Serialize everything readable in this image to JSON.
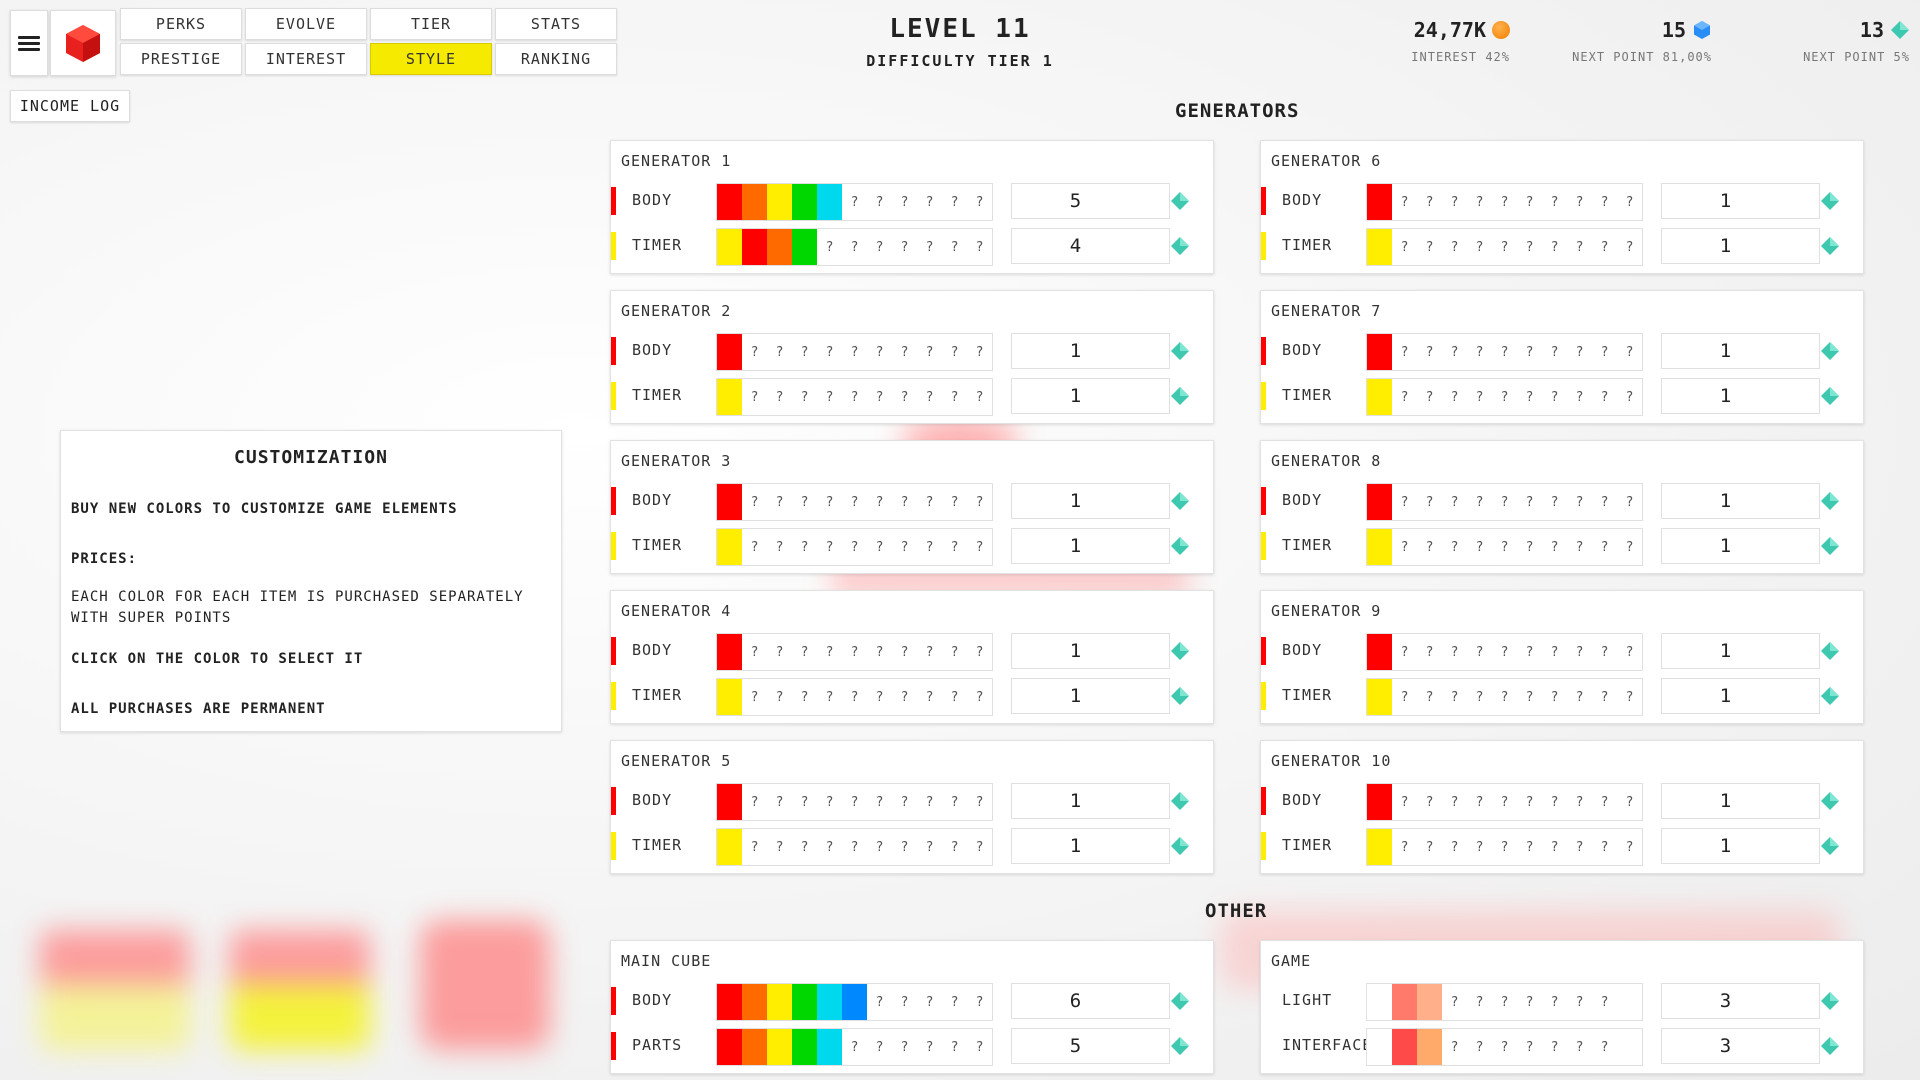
{
  "nav": {
    "menu_icon": "hamburger-menu-icon",
    "logo_icon": "red-cube-icon",
    "buttons": [
      {
        "label": "PERKS",
        "active": false
      },
      {
        "label": "EVOLVE",
        "active": false
      },
      {
        "label": "TIER",
        "active": false
      },
      {
        "label": "STATS",
        "active": false
      },
      {
        "label": "PRESTIGE",
        "active": false
      },
      {
        "label": "INTEREST",
        "active": false
      },
      {
        "label": "STYLE",
        "active": true
      },
      {
        "label": "RANKING",
        "active": false
      }
    ],
    "income_log": "INCOME LOG"
  },
  "header": {
    "level": "LEVEL 11",
    "difficulty": "DIFFICULTY TIER 1",
    "stats": [
      {
        "value": "24,77K",
        "icon": "coin-icon",
        "sub": "INTEREST 42%"
      },
      {
        "value": "15",
        "icon": "blue-gem-icon",
        "sub": "NEXT POINT 81,00%"
      },
      {
        "value": "13",
        "icon": "green-gem-icon",
        "sub": "NEXT POINT 5%"
      }
    ]
  },
  "colors": {
    "accent_yellow": "#f5ea00",
    "red": "#ff0000",
    "orange": "#ff6a00",
    "yellow": "#ffee00",
    "green": "#00d600",
    "cyan": "#00d8ee",
    "blue": "#0088ff",
    "salmon": "#ff7a6a",
    "peach": "#ffb08a",
    "buy_diamond": "#3ec8b0"
  },
  "customization": {
    "title": "CUSTOMIZATION",
    "line1": "BUY NEW COLORS TO CUSTOMIZE GAME ELEMENTS",
    "prices_label": "PRICES:",
    "prices_text": "EACH COLOR FOR EACH ITEM IS PURCHASED SEPARATELY WITH SUPER POINTS",
    "click_text": "CLICK ON THE COLOR TO SELECT IT",
    "permanent_text": "ALL PURCHASES ARE PERMANENT"
  },
  "generators_title": "GENERATORS",
  "other_title": "OTHER",
  "generators": [
    {
      "name": "GENERATOR 1",
      "rows": [
        {
          "label": "BODY",
          "marker": "#ff0000",
          "colors": [
            "#ff0000",
            "#ff6a00",
            "#ffee00",
            "#00d600",
            "#00d8ee"
          ],
          "unknown": 6,
          "amount": "5"
        },
        {
          "label": "TIMER",
          "marker": "#ffee00",
          "colors": [
            "#ffee00",
            "#ff0000",
            "#ff6a00",
            "#00d600"
          ],
          "unknown": 7,
          "amount": "4"
        }
      ]
    },
    {
      "name": "GENERATOR 6",
      "rows": [
        {
          "label": "BODY",
          "marker": "#ff0000",
          "colors": [
            "#ff0000"
          ],
          "unknown": 10,
          "amount": "1"
        },
        {
          "label": "TIMER",
          "marker": "#ffee00",
          "colors": [
            "#ffee00"
          ],
          "unknown": 10,
          "amount": "1"
        }
      ]
    },
    {
      "name": "GENERATOR 2",
      "rows": [
        {
          "label": "BODY",
          "marker": "#ff0000",
          "colors": [
            "#ff0000"
          ],
          "unknown": 10,
          "amount": "1"
        },
        {
          "label": "TIMER",
          "marker": "#ffee00",
          "colors": [
            "#ffee00"
          ],
          "unknown": 10,
          "amount": "1"
        }
      ]
    },
    {
      "name": "GENERATOR 7",
      "rows": [
        {
          "label": "BODY",
          "marker": "#ff0000",
          "colors": [
            "#ff0000"
          ],
          "unknown": 10,
          "amount": "1"
        },
        {
          "label": "TIMER",
          "marker": "#ffee00",
          "colors": [
            "#ffee00"
          ],
          "unknown": 10,
          "amount": "1"
        }
      ]
    },
    {
      "name": "GENERATOR 3",
      "rows": [
        {
          "label": "BODY",
          "marker": "#ff0000",
          "colors": [
            "#ff0000"
          ],
          "unknown": 10,
          "amount": "1"
        },
        {
          "label": "TIMER",
          "marker": "#ffee00",
          "colors": [
            "#ffee00"
          ],
          "unknown": 10,
          "amount": "1"
        }
      ]
    },
    {
      "name": "GENERATOR 8",
      "rows": [
        {
          "label": "BODY",
          "marker": "#ff0000",
          "colors": [
            "#ff0000"
          ],
          "unknown": 10,
          "amount": "1"
        },
        {
          "label": "TIMER",
          "marker": "#ffee00",
          "colors": [
            "#ffee00"
          ],
          "unknown": 10,
          "amount": "1"
        }
      ]
    },
    {
      "name": "GENERATOR 4",
      "rows": [
        {
          "label": "BODY",
          "marker": "#ff0000",
          "colors": [
            "#ff0000"
          ],
          "unknown": 10,
          "amount": "1"
        },
        {
          "label": "TIMER",
          "marker": "#ffee00",
          "colors": [
            "#ffee00"
          ],
          "unknown": 10,
          "amount": "1"
        }
      ]
    },
    {
      "name": "GENERATOR 9",
      "rows": [
        {
          "label": "BODY",
          "marker": "#ff0000",
          "colors": [
            "#ff0000"
          ],
          "unknown": 10,
          "amount": "1"
        },
        {
          "label": "TIMER",
          "marker": "#ffee00",
          "colors": [
            "#ffee00"
          ],
          "unknown": 10,
          "amount": "1"
        }
      ]
    },
    {
      "name": "GENERATOR 5",
      "rows": [
        {
          "label": "BODY",
          "marker": "#ff0000",
          "colors": [
            "#ff0000"
          ],
          "unknown": 10,
          "amount": "1"
        },
        {
          "label": "TIMER",
          "marker": "#ffee00",
          "colors": [
            "#ffee00"
          ],
          "unknown": 10,
          "amount": "1"
        }
      ]
    },
    {
      "name": "GENERATOR 10",
      "rows": [
        {
          "label": "BODY",
          "marker": "#ff0000",
          "colors": [
            "#ff0000"
          ],
          "unknown": 10,
          "amount": "1"
        },
        {
          "label": "TIMER",
          "marker": "#ffee00",
          "colors": [
            "#ffee00"
          ],
          "unknown": 10,
          "amount": "1"
        }
      ]
    }
  ],
  "other": [
    {
      "name": "MAIN CUBE",
      "rows": [
        {
          "label": "BODY",
          "marker": "#ff0000",
          "colors": [
            "#ff0000",
            "#ff6a00",
            "#ffee00",
            "#00d600",
            "#00d8ee",
            "#0088ff"
          ],
          "unknown": 5,
          "amount": "6"
        },
        {
          "label": "PARTS",
          "marker": "#ff0000",
          "colors": [
            "#ff0000",
            "#ff6a00",
            "#ffee00",
            "#00d600",
            "#00d8ee"
          ],
          "unknown": 6,
          "amount": "5"
        }
      ]
    },
    {
      "name": "GAME",
      "rows": [
        {
          "label": "LIGHT",
          "marker": "",
          "colors": [
            "#ffffff",
            "#ff7a6a",
            "#ffb08a"
          ],
          "unknown": 7,
          "amount": "3"
        },
        {
          "label": "INTERFACE",
          "marker": "",
          "colors": [
            "#ffffff",
            "#ff4a4a",
            "#ffaa6a"
          ],
          "unknown": 7,
          "amount": "3"
        }
      ]
    }
  ]
}
